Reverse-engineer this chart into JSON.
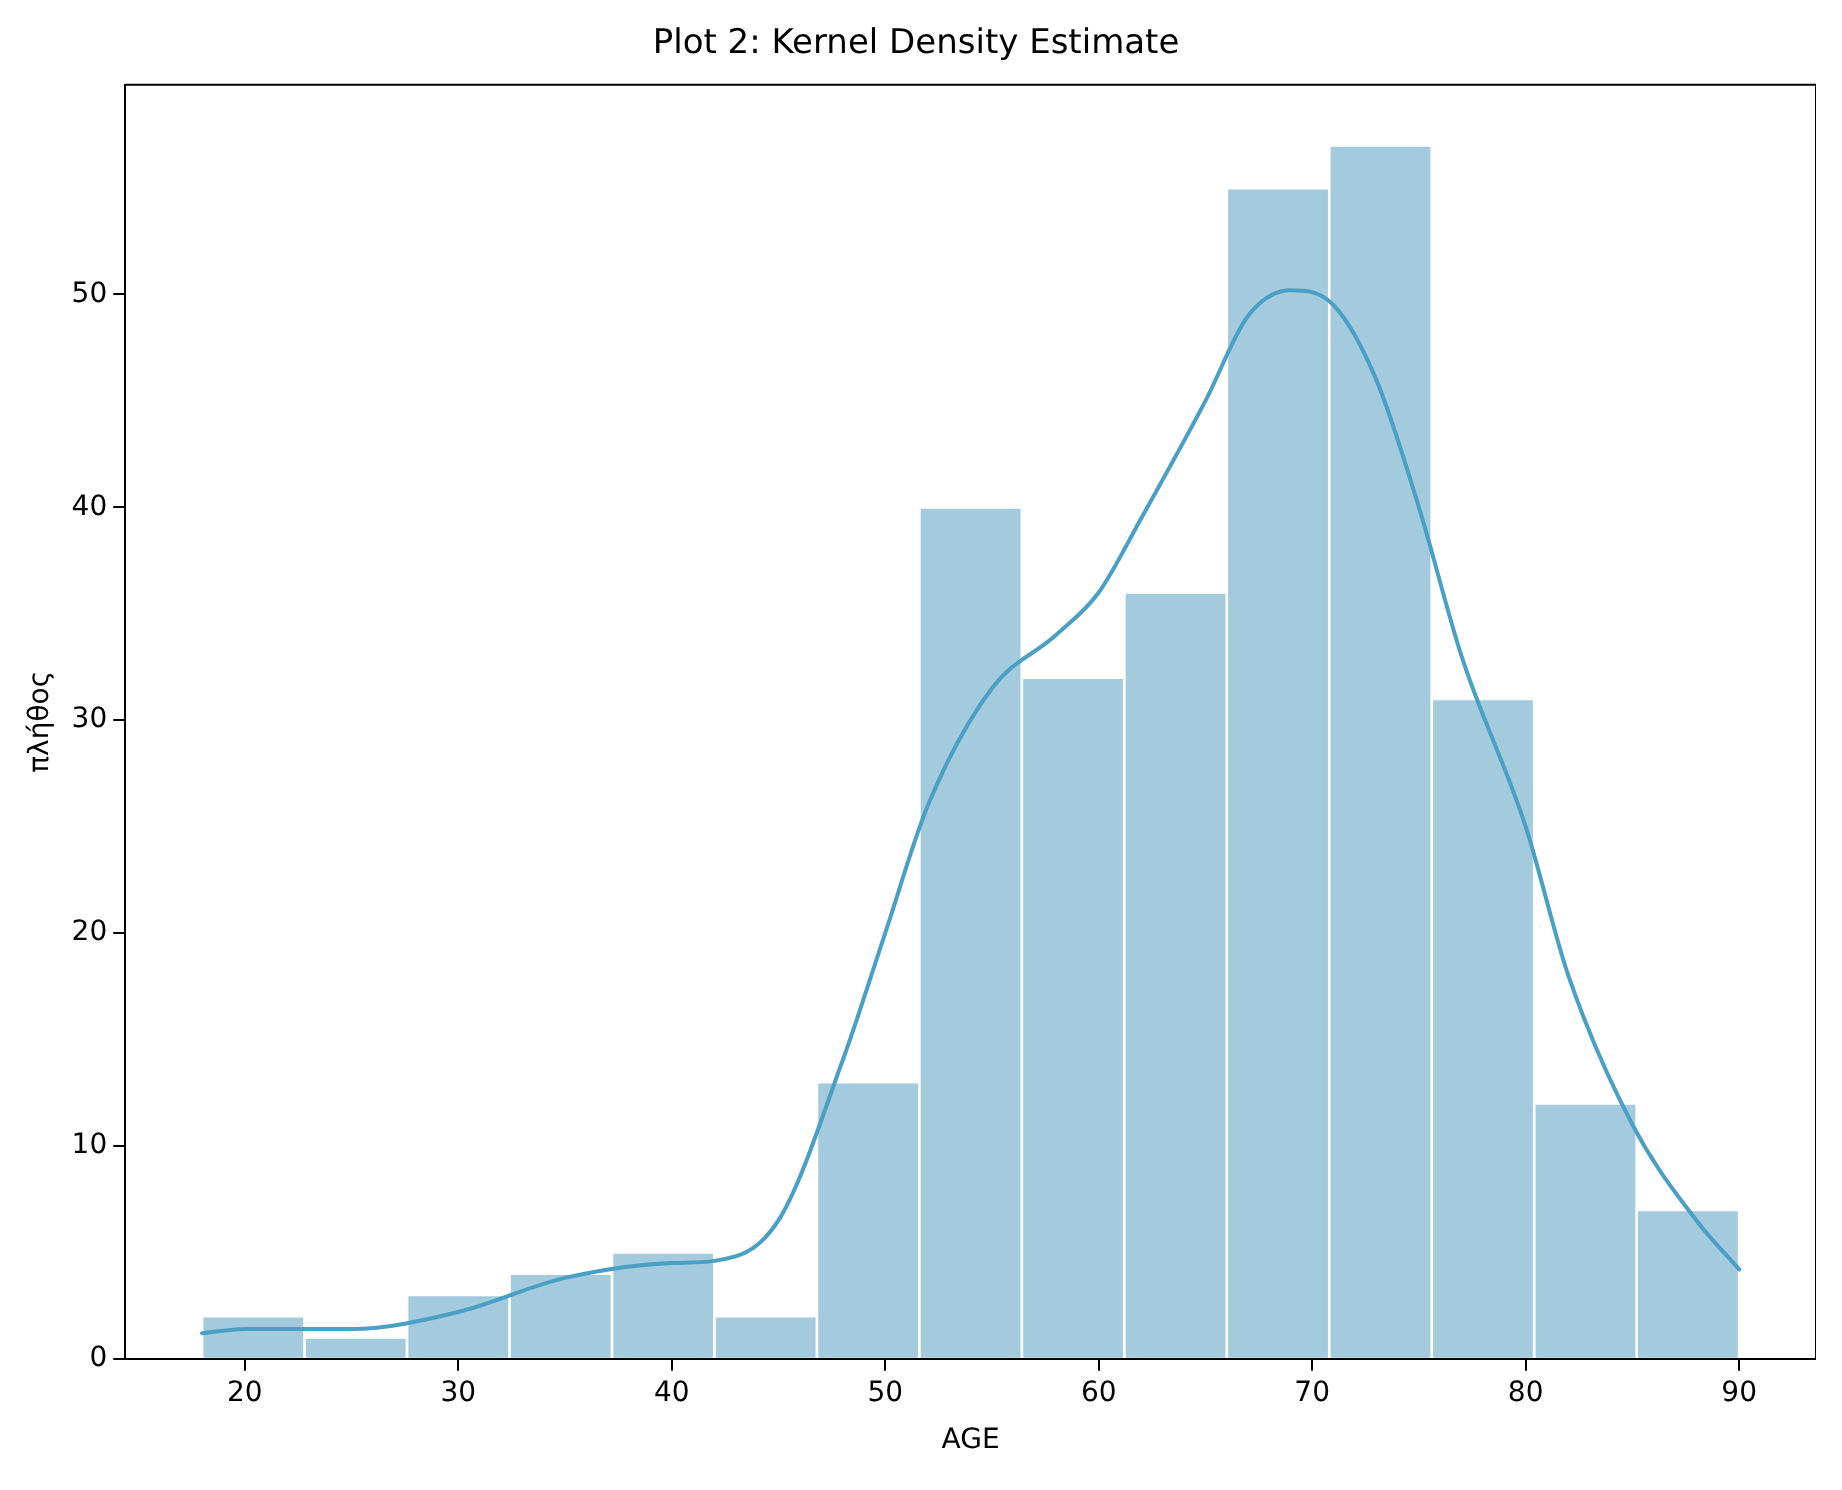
{
  "chart_data": {
    "type": "histogram",
    "title": "Plot 2: Kernel Density Estimate",
    "xlabel": "AGE",
    "ylabel": "πλήθος",
    "bins": [
      18,
      22.8,
      27.6,
      32.4,
      37.2,
      42,
      46.8,
      51.6,
      56.4,
      61.2,
      66,
      70.8,
      75.6,
      80.4,
      85.2,
      90
    ],
    "values": [
      2,
      1,
      3,
      4,
      5,
      2,
      13,
      40,
      32,
      36,
      55,
      57,
      31,
      12,
      7
    ],
    "color": "#a3cadd",
    "series": [
      {
        "type": "line",
        "color": "#4a9fc4",
        "x": [
          18,
          20,
          25,
          30,
          35,
          40,
          42,
          45,
          48,
          50,
          52,
          55,
          58,
          60,
          62,
          65,
          67,
          69,
          71,
          73,
          75,
          77,
          80,
          82,
          85,
          88,
          90
        ],
        "values": [
          1.2,
          1.4,
          1.4,
          2.2,
          3.8,
          4.5,
          4.6,
          6.5,
          14,
          20,
          26,
          31.5,
          34,
          36,
          39.5,
          45,
          49,
          50.2,
          49.5,
          46,
          40,
          33,
          25,
          18,
          11,
          6.5,
          4.2
        ]
      }
    ],
    "xlim": [
      14.4,
      93.6
    ],
    "ylim": [
      0,
      59.85
    ],
    "xticks": [
      20,
      30,
      40,
      50,
      60,
      70,
      80,
      90
    ],
    "yticks": [
      0,
      10,
      20,
      30,
      40,
      50
    ],
    "grid": false,
    "legend": false
  }
}
